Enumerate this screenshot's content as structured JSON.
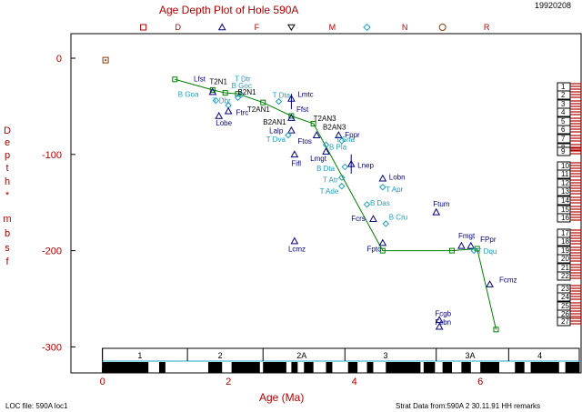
{
  "chart_data": {
    "type": "scatter",
    "title": "Age Depth Plot of Hole 590A",
    "corner_id": "19920208",
    "xlabel": "Age (Ma)",
    "ylabel_chars": [
      "D",
      "e",
      "p",
      "t",
      "h",
      "*",
      "m",
      "b",
      "s",
      "f"
    ],
    "xlim": [
      -0.5,
      7.6
    ],
    "ylim": [
      0,
      -325
    ],
    "x_ticks": [
      0,
      2,
      4,
      6
    ],
    "y_ticks": [
      0,
      -100,
      -200,
      -300
    ],
    "footer_left": "LOC file: 590A loc1",
    "footer_right": "Strat Data from:590A 2 30.11.91 HH remarks",
    "top_legend": [
      {
        "symbol": "square",
        "x": 0.65
      },
      {
        "label": "D",
        "x": 1.2
      },
      {
        "symbol": "triangle",
        "x": 1.9
      },
      {
        "label": "F",
        "x": 2.45
      },
      {
        "symbol": "triangle-down",
        "x": 3.0
      },
      {
        "label": "M",
        "x": 3.65
      },
      {
        "symbol": "diamond",
        "x": 4.2
      },
      {
        "label": "N",
        "x": 4.8
      },
      {
        "symbol": "circle",
        "x": 5.4
      },
      {
        "label": "R",
        "x": 6.1
      }
    ],
    "origin_marker": {
      "x": 0.05,
      "y": -2
    },
    "loc_line": [
      [
        1.15,
        -22
      ],
      [
        1.75,
        -33
      ],
      [
        1.95,
        -36
      ],
      [
        2.15,
        -37
      ],
      [
        2.55,
        -46
      ],
      [
        3.0,
        -60
      ],
      [
        3.35,
        -68
      ],
      [
        4.45,
        -200
      ],
      [
        5.55,
        -200
      ],
      [
        5.95,
        -198
      ],
      [
        6.25,
        -282
      ]
    ],
    "events": [
      {
        "label": "Lfst",
        "x": 1.75,
        "y": -35,
        "kind": "foram",
        "lx": 1.45,
        "ly": -24,
        "c": "navy",
        "s": "tri"
      },
      {
        "label": "T2N1",
        "x": 1.85,
        "y": -38,
        "kind": "nanno",
        "lx": 1.7,
        "ly": -27,
        "c": "black",
        "s": "none"
      },
      {
        "label": "T Dtr",
        "x": 2.2,
        "y": -38,
        "kind": "nanno",
        "lx": 2.1,
        "ly": -24,
        "c": "cyan",
        "s": "dia"
      },
      {
        "label": "B Goc",
        "x": 2.15,
        "y": -41,
        "kind": "nanno",
        "lx": 2.05,
        "ly": -31,
        "c": "cyan",
        "s": "dia"
      },
      {
        "label": "B2N1",
        "x": 2.15,
        "y": -44,
        "kind": "nanno",
        "lx": 2.15,
        "ly": -38,
        "c": "black",
        "s": "none"
      },
      {
        "label": "B Goa",
        "x": 1.8,
        "y": -44,
        "kind": "nanno",
        "lx": 1.2,
        "ly": -40,
        "c": "cyan",
        "s": "dia"
      },
      {
        "label": "T Dbr",
        "x": 2.0,
        "y": -49,
        "kind": "nanno",
        "lx": 1.75,
        "ly": -47,
        "c": "cyan",
        "s": "dia"
      },
      {
        "label": "Ftrc",
        "x": 2.0,
        "y": -55,
        "kind": "foram",
        "lx": 2.12,
        "ly": -59,
        "c": "navy",
        "s": "tri"
      },
      {
        "label": "Lobe",
        "x": 1.85,
        "y": -60,
        "kind": "foram",
        "lx": 1.8,
        "ly": -70,
        "c": "navy",
        "s": "tri"
      },
      {
        "label": "T2AN1",
        "x": 2.5,
        "y": -53,
        "kind": "nanno",
        "lx": 2.3,
        "ly": -56,
        "c": "black",
        "s": "none"
      },
      {
        "label": "T Dta",
        "x": 2.8,
        "y": -45,
        "kind": "nanno",
        "lx": 2.7,
        "ly": -41,
        "c": "cyan",
        "s": "dia"
      },
      {
        "label": "Lmtc",
        "x": 3.0,
        "y": -42,
        "kind": "foram",
        "lx": 3.1,
        "ly": -40,
        "c": "navy",
        "s": "tri"
      },
      {
        "label": "Ffst",
        "x": 3.0,
        "y": -62,
        "kind": "foram",
        "lx": 3.08,
        "ly": -56,
        "c": "navy",
        "s": "tri"
      },
      {
        "label": "B2AN1",
        "x": 3.0,
        "y": -67,
        "kind": "nanno",
        "lx": 2.55,
        "ly": -69,
        "c": "black",
        "s": "none"
      },
      {
        "label": "Lalp",
        "x": 3.0,
        "y": -75,
        "kind": "foram",
        "lx": 2.65,
        "ly": -78,
        "c": "navy",
        "s": "tri"
      },
      {
        "label": "T Dva",
        "x": 2.95,
        "y": -80,
        "kind": "nanno",
        "lx": 2.6,
        "ly": -87,
        "c": "cyan",
        "s": "dia"
      },
      {
        "label": "T2AN3",
        "x": 3.4,
        "y": -68,
        "kind": "nanno",
        "lx": 3.35,
        "ly": -65,
        "c": "black",
        "s": "none"
      },
      {
        "label": "B2AN3",
        "x": 3.6,
        "y": -75,
        "kind": "nanno",
        "lx": 3.5,
        "ly": -74,
        "c": "black",
        "s": "none"
      },
      {
        "label": "Ftos",
        "x": 3.4,
        "y": -80,
        "kind": "foram",
        "lx": 3.1,
        "ly": -89,
        "c": "navy",
        "s": "tri"
      },
      {
        "label": "Fppr",
        "x": 3.75,
        "y": -80,
        "kind": "foram",
        "lx": 3.85,
        "ly": -82,
        "c": "navy",
        "s": "tri"
      },
      {
        "label": "T Sna",
        "x": 3.8,
        "y": -86,
        "kind": "nanno",
        "lx": 3.7,
        "ly": -87,
        "c": "cyan",
        "s": "dia"
      },
      {
        "label": "B Pla",
        "x": 3.55,
        "y": -90,
        "kind": "nanno",
        "lx": 3.6,
        "ly": -95,
        "c": "cyan",
        "s": "dia"
      },
      {
        "label": "Lmgt",
        "x": 3.55,
        "y": -97,
        "kind": "foram",
        "lx": 3.3,
        "ly": -107,
        "c": "navy",
        "s": "tri"
      },
      {
        "label": "Fifl",
        "x": 3.05,
        "y": -100,
        "kind": "foram",
        "lx": 3.0,
        "ly": -112,
        "c": "navy",
        "s": "tri"
      },
      {
        "label": "Lnep",
        "x": 3.95,
        "y": -110,
        "kind": "foram",
        "lx": 4.05,
        "ly": -114,
        "c": "navy",
        "s": "tri"
      },
      {
        "label": "B Dta",
        "x": 3.85,
        "y": -113,
        "kind": "nanno",
        "lx": 3.4,
        "ly": -117,
        "c": "cyan",
        "s": "dia"
      },
      {
        "label": "T Atr",
        "x": 3.8,
        "y": -124,
        "kind": "nanno",
        "lx": 3.5,
        "ly": -129,
        "c": "cyan",
        "s": "dia"
      },
      {
        "label": "T Ade",
        "x": 3.8,
        "y": -133,
        "kind": "nanno",
        "lx": 3.45,
        "ly": -141,
        "c": "cyan",
        "s": "dia"
      },
      {
        "label": "Lobn",
        "x": 4.45,
        "y": -125,
        "kind": "foram",
        "lx": 4.55,
        "ly": -126,
        "c": "navy",
        "s": "tri"
      },
      {
        "label": "T Apr",
        "x": 4.45,
        "y": -134,
        "kind": "nanno",
        "lx": 4.5,
        "ly": -139,
        "c": "cyan",
        "s": "dia"
      },
      {
        "label": "B Das",
        "x": 4.2,
        "y": -152,
        "kind": "nanno",
        "lx": 4.25,
        "ly": -153,
        "c": "cyan",
        "s": "dia"
      },
      {
        "label": "Ftum",
        "x": 5.3,
        "y": -160,
        "kind": "foram",
        "lx": 5.25,
        "ly": -154,
        "c": "navy",
        "s": "tri"
      },
      {
        "label": "Fcrs",
        "x": 4.3,
        "y": -167,
        "kind": "foram",
        "lx": 3.95,
        "ly": -169,
        "c": "navy",
        "s": "tri"
      },
      {
        "label": "B Cru",
        "x": 4.5,
        "y": -172,
        "kind": "nanno",
        "lx": 4.55,
        "ly": -168,
        "c": "cyan",
        "s": "dia"
      },
      {
        "label": "Fptc",
        "x": 4.45,
        "y": -192,
        "kind": "foram",
        "lx": 4.2,
        "ly": -201,
        "c": "navy",
        "s": "tri"
      },
      {
        "label": "Lcmz",
        "x": 3.05,
        "y": -190,
        "kind": "foram",
        "lx": 2.95,
        "ly": -201,
        "c": "navy",
        "s": "tri"
      },
      {
        "label": "Fmgt",
        "x": 5.7,
        "y": -195,
        "kind": "foram",
        "lx": 5.65,
        "ly": -187,
        "c": "navy",
        "s": "tri"
      },
      {
        "label": "FPpr",
        "x": 5.85,
        "y": -195,
        "kind": "foram",
        "lx": 6.0,
        "ly": -191,
        "c": "navy",
        "s": "tri"
      },
      {
        "label": "T Dqu",
        "x": 5.9,
        "y": -200,
        "kind": "nanno",
        "lx": 5.95,
        "ly": -203,
        "c": "cyan",
        "s": "dia"
      },
      {
        "label": "Fcmz",
        "x": 6.15,
        "y": -235,
        "kind": "foram",
        "lx": 6.3,
        "ly": -233,
        "c": "navy",
        "s": "tri"
      },
      {
        "label": "Fcgb",
        "x": 5.35,
        "y": -272,
        "kind": "foram",
        "lx": 5.28,
        "ly": -268,
        "c": "navy",
        "s": "tri"
      },
      {
        "label": "Fcbn",
        "x": 5.35,
        "y": -279,
        "kind": "foram",
        "lx": 5.28,
        "ly": -277,
        "c": "navy",
        "s": "tri"
      }
    ],
    "error_bars": [
      {
        "x": 3.95,
        "y": -110,
        "dy": 10
      },
      {
        "x": 3.0,
        "y": -45,
        "dy": 8
      }
    ],
    "cores": [
      "1",
      "2",
      "3",
      "4",
      "5",
      "6",
      "7",
      "8",
      "9",
      "10",
      "11",
      "12",
      "13",
      "14",
      "15",
      "16",
      "17",
      "18",
      "19",
      "20",
      "21",
      "22",
      "23",
      "24",
      "25",
      "26",
      "27"
    ],
    "epochs": [
      {
        "label": "1",
        "from": 0,
        "to": 1.35
      },
      {
        "label": "2",
        "from": 1.35,
        "to": 2.55
      },
      {
        "label": "2A",
        "from": 2.55,
        "to": 3.85
      },
      {
        "label": "3",
        "from": 3.85,
        "to": 5.3
      },
      {
        "label": "3A",
        "from": 5.3,
        "to": 6.45
      },
      {
        "label": "4",
        "from": 6.45,
        "to": 7.6
      }
    ],
    "polarity_black": [
      [
        0,
        0.73
      ],
      [
        0.9,
        1.0
      ],
      [
        1.68,
        1.9
      ],
      [
        2.05,
        2.5
      ],
      [
        2.55,
        2.92
      ],
      [
        3.0,
        3.1
      ],
      [
        3.2,
        3.35
      ],
      [
        3.55,
        3.65
      ],
      [
        3.9,
        4.05
      ],
      [
        4.2,
        4.3
      ],
      [
        4.5,
        5.05
      ],
      [
        5.1,
        5.28
      ],
      [
        5.4,
        5.55
      ],
      [
        5.7,
        5.85
      ],
      [
        6.0,
        6.3
      ],
      [
        6.55,
        6.7
      ],
      [
        6.8,
        7.25
      ],
      [
        7.35,
        7.6
      ]
    ]
  }
}
